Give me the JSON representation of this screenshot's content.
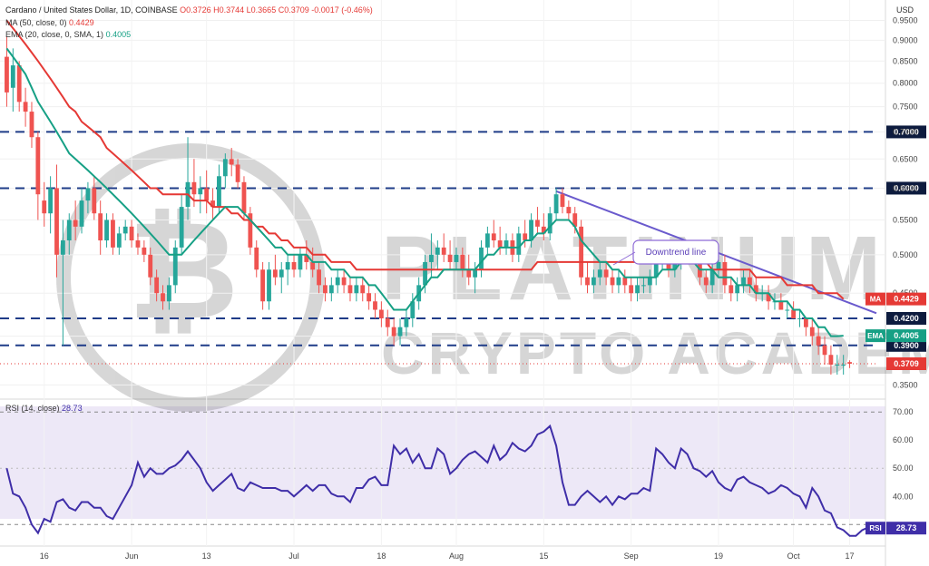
{
  "header": {
    "symbol": "Cardano / United States Dollar, 1D, COINBASE",
    "ohlc": "O0.3726 H0.3744 L0.3665 C0.3709 -0.0017 (-0.46%)",
    "ma_label": "MA (50, close, 0)",
    "ma_value": "0.4429",
    "ema_label": "EMA (20, close, 0, SMA, 1)",
    "ema_value": "0.4005",
    "rsi_label": "RSI (14, close)",
    "rsi_value": "28.73"
  },
  "currency": "USD",
  "watermark": "PLATINUM CRYPTO ACADEMY",
  "annotation": "Downtrend line",
  "colors": {
    "up": "#26a69a",
    "down": "#ef5350",
    "ma": "#e53935",
    "ema": "#16a085",
    "rsi": "#3f2ea8",
    "trendline": "#6a5acd",
    "level": "#1f3c88",
    "price_tag": "#e53935"
  },
  "chart_data": [
    {
      "type": "candlestick",
      "y_scale": "log",
      "ylim": [
        0.34,
        0.985
      ],
      "y_ticks": [
        "0.9500",
        "0.9000",
        "0.8500",
        "0.8000",
        "0.7500",
        "0.7000",
        "0.6500",
        "0.6000",
        "0.5500",
        "0.5000",
        "0.4500",
        "0.4000",
        "0.3500"
      ],
      "x_ticks": [
        "16",
        "Jun",
        "13",
        "Jul",
        "18",
        "Aug",
        "15",
        "Sep",
        "19",
        "Oct",
        "17"
      ],
      "candles": [
        [
          0.86,
          0.91,
          0.75,
          0.78
        ],
        [
          0.79,
          0.88,
          0.74,
          0.84
        ],
        [
          0.84,
          0.85,
          0.74,
          0.76
        ],
        [
          0.76,
          0.79,
          0.71,
          0.74
        ],
        [
          0.74,
          0.76,
          0.67,
          0.69
        ],
        [
          0.69,
          0.7,
          0.55,
          0.59
        ],
        [
          0.58,
          0.61,
          0.54,
          0.56
        ],
        [
          0.56,
          0.62,
          0.53,
          0.6
        ],
        [
          0.6,
          0.64,
          0.47,
          0.5
        ],
        [
          0.5,
          0.55,
          0.39,
          0.52
        ],
        [
          0.52,
          0.56,
          0.5,
          0.55
        ],
        [
          0.55,
          0.58,
          0.52,
          0.54
        ],
        [
          0.54,
          0.6,
          0.53,
          0.58
        ],
        [
          0.58,
          0.61,
          0.56,
          0.6
        ],
        [
          0.6,
          0.62,
          0.55,
          0.56
        ],
        [
          0.56,
          0.58,
          0.5,
          0.52
        ],
        [
          0.52,
          0.56,
          0.51,
          0.55
        ],
        [
          0.55,
          0.56,
          0.5,
          0.51
        ],
        [
          0.51,
          0.54,
          0.5,
          0.53
        ],
        [
          0.53,
          0.55,
          0.52,
          0.54
        ],
        [
          0.54,
          0.55,
          0.51,
          0.52
        ],
        [
          0.52,
          0.53,
          0.5,
          0.51
        ],
        [
          0.51,
          0.52,
          0.49,
          0.5
        ],
        [
          0.5,
          0.51,
          0.46,
          0.47
        ],
        [
          0.47,
          0.48,
          0.44,
          0.45
        ],
        [
          0.45,
          0.46,
          0.43,
          0.44
        ],
        [
          0.44,
          0.47,
          0.43,
          0.46
        ],
        [
          0.46,
          0.52,
          0.45,
          0.51
        ],
        [
          0.51,
          0.59,
          0.5,
          0.57
        ],
        [
          0.57,
          0.69,
          0.55,
          0.61
        ],
        [
          0.61,
          0.65,
          0.57,
          0.59
        ],
        [
          0.59,
          0.62,
          0.56,
          0.6
        ],
        [
          0.6,
          0.63,
          0.56,
          0.58
        ],
        [
          0.58,
          0.6,
          0.55,
          0.57
        ],
        [
          0.57,
          0.64,
          0.56,
          0.62
        ],
        [
          0.62,
          0.66,
          0.6,
          0.65
        ],
        [
          0.65,
          0.67,
          0.62,
          0.64
        ],
        [
          0.64,
          0.65,
          0.6,
          0.61
        ],
        [
          0.61,
          0.62,
          0.55,
          0.56
        ],
        [
          0.56,
          0.57,
          0.5,
          0.51
        ],
        [
          0.51,
          0.52,
          0.47,
          0.48
        ],
        [
          0.48,
          0.49,
          0.43,
          0.44
        ],
        [
          0.44,
          0.49,
          0.43,
          0.48
        ],
        [
          0.48,
          0.5,
          0.46,
          0.47
        ],
        [
          0.47,
          0.49,
          0.45,
          0.48
        ],
        [
          0.48,
          0.5,
          0.46,
          0.49
        ],
        [
          0.49,
          0.5,
          0.47,
          0.48
        ],
        [
          0.48,
          0.51,
          0.47,
          0.5
        ],
        [
          0.5,
          0.52,
          0.48,
          0.49
        ],
        [
          0.49,
          0.51,
          0.47,
          0.48
        ],
        [
          0.48,
          0.49,
          0.45,
          0.46
        ],
        [
          0.46,
          0.47,
          0.44,
          0.45
        ],
        [
          0.45,
          0.47,
          0.44,
          0.46
        ],
        [
          0.46,
          0.48,
          0.45,
          0.47
        ],
        [
          0.47,
          0.48,
          0.45,
          0.46
        ],
        [
          0.46,
          0.47,
          0.44,
          0.45
        ],
        [
          0.45,
          0.47,
          0.44,
          0.46
        ],
        [
          0.46,
          0.47,
          0.44,
          0.45
        ],
        [
          0.45,
          0.46,
          0.43,
          0.44
        ],
        [
          0.44,
          0.45,
          0.42,
          0.43
        ],
        [
          0.43,
          0.44,
          0.41,
          0.42
        ],
        [
          0.42,
          0.43,
          0.4,
          0.41
        ],
        [
          0.41,
          0.42,
          0.39,
          0.4
        ],
        [
          0.4,
          0.42,
          0.39,
          0.41
        ],
        [
          0.41,
          0.43,
          0.4,
          0.42
        ],
        [
          0.42,
          0.45,
          0.41,
          0.44
        ],
        [
          0.44,
          0.47,
          0.43,
          0.46
        ],
        [
          0.46,
          0.5,
          0.45,
          0.49
        ],
        [
          0.49,
          0.53,
          0.47,
          0.5
        ],
        [
          0.5,
          0.52,
          0.48,
          0.51
        ],
        [
          0.51,
          0.53,
          0.49,
          0.5
        ],
        [
          0.5,
          0.52,
          0.48,
          0.49
        ],
        [
          0.49,
          0.51,
          0.48,
          0.5
        ],
        [
          0.5,
          0.51,
          0.47,
          0.48
        ],
        [
          0.48,
          0.5,
          0.46,
          0.47
        ],
        [
          0.47,
          0.49,
          0.45,
          0.48
        ],
        [
          0.48,
          0.52,
          0.47,
          0.51
        ],
        [
          0.51,
          0.54,
          0.5,
          0.53
        ],
        [
          0.53,
          0.55,
          0.51,
          0.52
        ],
        [
          0.52,
          0.54,
          0.5,
          0.51
        ],
        [
          0.51,
          0.53,
          0.5,
          0.52
        ],
        [
          0.52,
          0.53,
          0.49,
          0.5
        ],
        [
          0.5,
          0.54,
          0.49,
          0.53
        ],
        [
          0.53,
          0.55,
          0.51,
          0.52
        ],
        [
          0.52,
          0.56,
          0.51,
          0.55
        ],
        [
          0.55,
          0.57,
          0.53,
          0.54
        ],
        [
          0.54,
          0.56,
          0.52,
          0.53
        ],
        [
          0.53,
          0.57,
          0.52,
          0.56
        ],
        [
          0.56,
          0.6,
          0.55,
          0.59
        ],
        [
          0.59,
          0.6,
          0.56,
          0.57
        ],
        [
          0.57,
          0.58,
          0.55,
          0.56
        ],
        [
          0.56,
          0.57,
          0.53,
          0.54
        ],
        [
          0.54,
          0.55,
          0.46,
          0.47
        ],
        [
          0.47,
          0.49,
          0.45,
          0.46
        ],
        [
          0.46,
          0.48,
          0.45,
          0.47
        ],
        [
          0.47,
          0.49,
          0.46,
          0.48
        ],
        [
          0.48,
          0.49,
          0.46,
          0.47
        ],
        [
          0.47,
          0.48,
          0.45,
          0.46
        ],
        [
          0.46,
          0.48,
          0.45,
          0.47
        ],
        [
          0.47,
          0.48,
          0.45,
          0.46
        ],
        [
          0.46,
          0.47,
          0.44,
          0.45
        ],
        [
          0.45,
          0.47,
          0.44,
          0.46
        ],
        [
          0.46,
          0.47,
          0.45,
          0.46
        ],
        [
          0.46,
          0.48,
          0.45,
          0.47
        ],
        [
          0.47,
          0.5,
          0.46,
          0.49
        ],
        [
          0.49,
          0.51,
          0.48,
          0.5
        ],
        [
          0.5,
          0.51,
          0.47,
          0.48
        ],
        [
          0.48,
          0.5,
          0.47,
          0.49
        ],
        [
          0.49,
          0.51,
          0.48,
          0.5
        ],
        [
          0.5,
          0.52,
          0.49,
          0.51
        ],
        [
          0.51,
          0.52,
          0.49,
          0.5
        ],
        [
          0.5,
          0.51,
          0.46,
          0.47
        ],
        [
          0.47,
          0.48,
          0.45,
          0.46
        ],
        [
          0.46,
          0.49,
          0.45,
          0.48
        ],
        [
          0.48,
          0.5,
          0.47,
          0.49
        ],
        [
          0.49,
          0.5,
          0.45,
          0.46
        ],
        [
          0.46,
          0.47,
          0.44,
          0.45
        ],
        [
          0.45,
          0.47,
          0.44,
          0.46
        ],
        [
          0.46,
          0.48,
          0.45,
          0.47
        ],
        [
          0.47,
          0.48,
          0.45,
          0.46
        ],
        [
          0.46,
          0.47,
          0.44,
          0.45
        ],
        [
          0.45,
          0.46,
          0.44,
          0.45
        ],
        [
          0.45,
          0.46,
          0.43,
          0.44
        ],
        [
          0.44,
          0.45,
          0.43,
          0.44
        ],
        [
          0.44,
          0.45,
          0.43,
          0.43
        ],
        [
          0.43,
          0.44,
          0.42,
          0.43
        ],
        [
          0.43,
          0.44,
          0.42,
          0.42
        ],
        [
          0.42,
          0.43,
          0.41,
          0.42
        ],
        [
          0.42,
          0.42,
          0.4,
          0.41
        ],
        [
          0.41,
          0.42,
          0.39,
          0.4
        ],
        [
          0.4,
          0.41,
          0.38,
          0.39
        ],
        [
          0.39,
          0.4,
          0.37,
          0.38
        ],
        [
          0.38,
          0.39,
          0.36,
          0.37
        ],
        [
          0.37,
          0.38,
          0.36,
          0.37
        ],
        [
          0.37,
          0.38,
          0.36,
          0.37
        ],
        [
          0.3726,
          0.3744,
          0.3665,
          0.3709
        ]
      ],
      "ma_50": [
        0.95,
        0.93,
        0.91,
        0.89,
        0.87,
        0.85,
        0.83,
        0.81,
        0.79,
        0.77,
        0.75,
        0.74,
        0.72,
        0.71,
        0.7,
        0.69,
        0.67,
        0.66,
        0.65,
        0.64,
        0.63,
        0.62,
        0.61,
        0.6,
        0.6,
        0.59,
        0.59,
        0.59,
        0.59,
        0.59,
        0.58,
        0.58,
        0.58,
        0.57,
        0.57,
        0.57,
        0.56,
        0.56,
        0.55,
        0.55,
        0.54,
        0.54,
        0.53,
        0.53,
        0.52,
        0.52,
        0.51,
        0.51,
        0.51,
        0.5,
        0.5,
        0.5,
        0.49,
        0.49,
        0.49,
        0.49,
        0.48,
        0.48,
        0.48,
        0.48,
        0.48,
        0.48,
        0.48,
        0.48,
        0.48,
        0.48,
        0.48,
        0.48,
        0.48,
        0.48,
        0.48,
        0.48,
        0.48,
        0.48,
        0.48,
        0.48,
        0.48,
        0.48,
        0.48,
        0.48,
        0.48,
        0.48,
        0.48,
        0.48,
        0.48,
        0.49,
        0.49,
        0.49,
        0.49,
        0.49,
        0.49,
        0.49,
        0.49,
        0.49,
        0.49,
        0.49,
        0.49,
        0.49,
        0.49,
        0.49,
        0.49,
        0.49,
        0.49,
        0.49,
        0.49,
        0.49,
        0.49,
        0.49,
        0.49,
        0.49,
        0.49,
        0.49,
        0.49,
        0.48,
        0.48,
        0.48,
        0.48,
        0.48,
        0.48,
        0.48,
        0.47,
        0.47,
        0.47,
        0.47,
        0.47,
        0.46,
        0.46,
        0.46,
        0.46,
        0.46,
        0.45,
        0.45,
        0.45,
        0.45,
        0.4429
      ],
      "ema_20": [
        0.88,
        0.86,
        0.84,
        0.82,
        0.79,
        0.76,
        0.74,
        0.72,
        0.7,
        0.68,
        0.66,
        0.65,
        0.64,
        0.63,
        0.62,
        0.61,
        0.6,
        0.59,
        0.58,
        0.57,
        0.56,
        0.55,
        0.54,
        0.53,
        0.52,
        0.51,
        0.5,
        0.5,
        0.5,
        0.51,
        0.52,
        0.53,
        0.54,
        0.55,
        0.56,
        0.57,
        0.57,
        0.57,
        0.56,
        0.55,
        0.54,
        0.53,
        0.52,
        0.51,
        0.51,
        0.5,
        0.5,
        0.5,
        0.5,
        0.49,
        0.49,
        0.49,
        0.48,
        0.48,
        0.48,
        0.47,
        0.47,
        0.47,
        0.46,
        0.46,
        0.45,
        0.44,
        0.43,
        0.43,
        0.43,
        0.44,
        0.45,
        0.46,
        0.47,
        0.47,
        0.48,
        0.48,
        0.48,
        0.48,
        0.48,
        0.48,
        0.49,
        0.5,
        0.5,
        0.51,
        0.51,
        0.51,
        0.51,
        0.52,
        0.52,
        0.53,
        0.53,
        0.54,
        0.55,
        0.55,
        0.55,
        0.54,
        0.52,
        0.51,
        0.5,
        0.49,
        0.49,
        0.48,
        0.48,
        0.47,
        0.47,
        0.47,
        0.47,
        0.47,
        0.47,
        0.48,
        0.48,
        0.48,
        0.49,
        0.49,
        0.49,
        0.48,
        0.48,
        0.48,
        0.47,
        0.47,
        0.47,
        0.46,
        0.46,
        0.46,
        0.45,
        0.45,
        0.45,
        0.44,
        0.44,
        0.44,
        0.43,
        0.43,
        0.42,
        0.42,
        0.41,
        0.41,
        0.4,
        0.4,
        0.4005
      ]
    },
    {
      "type": "line",
      "title": "RSI (14, close)",
      "ylim": [
        23,
        72
      ],
      "y_ticks": [
        "70.00",
        "60.00",
        "50.00",
        "40.00"
      ],
      "x_ticks": [
        "16",
        "Jun",
        "13",
        "Jul",
        "18",
        "Aug",
        "15",
        "Sep",
        "19",
        "Oct",
        "17"
      ],
      "values": [
        50,
        41,
        40,
        36,
        30,
        27,
        32,
        31,
        38,
        39,
        36,
        35,
        38,
        38,
        36,
        36,
        33,
        32,
        36,
        40,
        44,
        52,
        47,
        50,
        48,
        48,
        50,
        51,
        53,
        56,
        53,
        50,
        45,
        42,
        44,
        46,
        48,
        43,
        42,
        45,
        44,
        43,
        43,
        43,
        42,
        42,
        40,
        42,
        44,
        42,
        44,
        44,
        41,
        40,
        40,
        38,
        43,
        43,
        46,
        47,
        44,
        44,
        58,
        55,
        57,
        52,
        55,
        50,
        50,
        57,
        55,
        48,
        50,
        53,
        55,
        56,
        54,
        52,
        58,
        53,
        55,
        59,
        57,
        56,
        58,
        62,
        63,
        65,
        58,
        45,
        37,
        37,
        40,
        42,
        40,
        38,
        40,
        37,
        40,
        39,
        41,
        41,
        43,
        42,
        57,
        55,
        52,
        50,
        57,
        55,
        50,
        49,
        47,
        49,
        45,
        43,
        42,
        46,
        47,
        45,
        44,
        43,
        41,
        42,
        44,
        43,
        41,
        40,
        36,
        43,
        40,
        35,
        34,
        29,
        28,
        26,
        26,
        28,
        29,
        28.73
      ]
    }
  ],
  "levels": [
    {
      "value": 0.7,
      "label": "0.7000"
    },
    {
      "value": 0.6,
      "label": "0.6000"
    },
    {
      "value": 0.42,
      "label": "0.4200"
    },
    {
      "value": 0.39,
      "label": "0.3900"
    }
  ],
  "tags": [
    {
      "text": "0.4429",
      "name": "MA"
    },
    {
      "text": "0.4005",
      "name": "EMA"
    },
    {
      "text": "0.3709",
      "name": ""
    },
    {
      "text": "28.73",
      "name": "RSI"
    }
  ]
}
